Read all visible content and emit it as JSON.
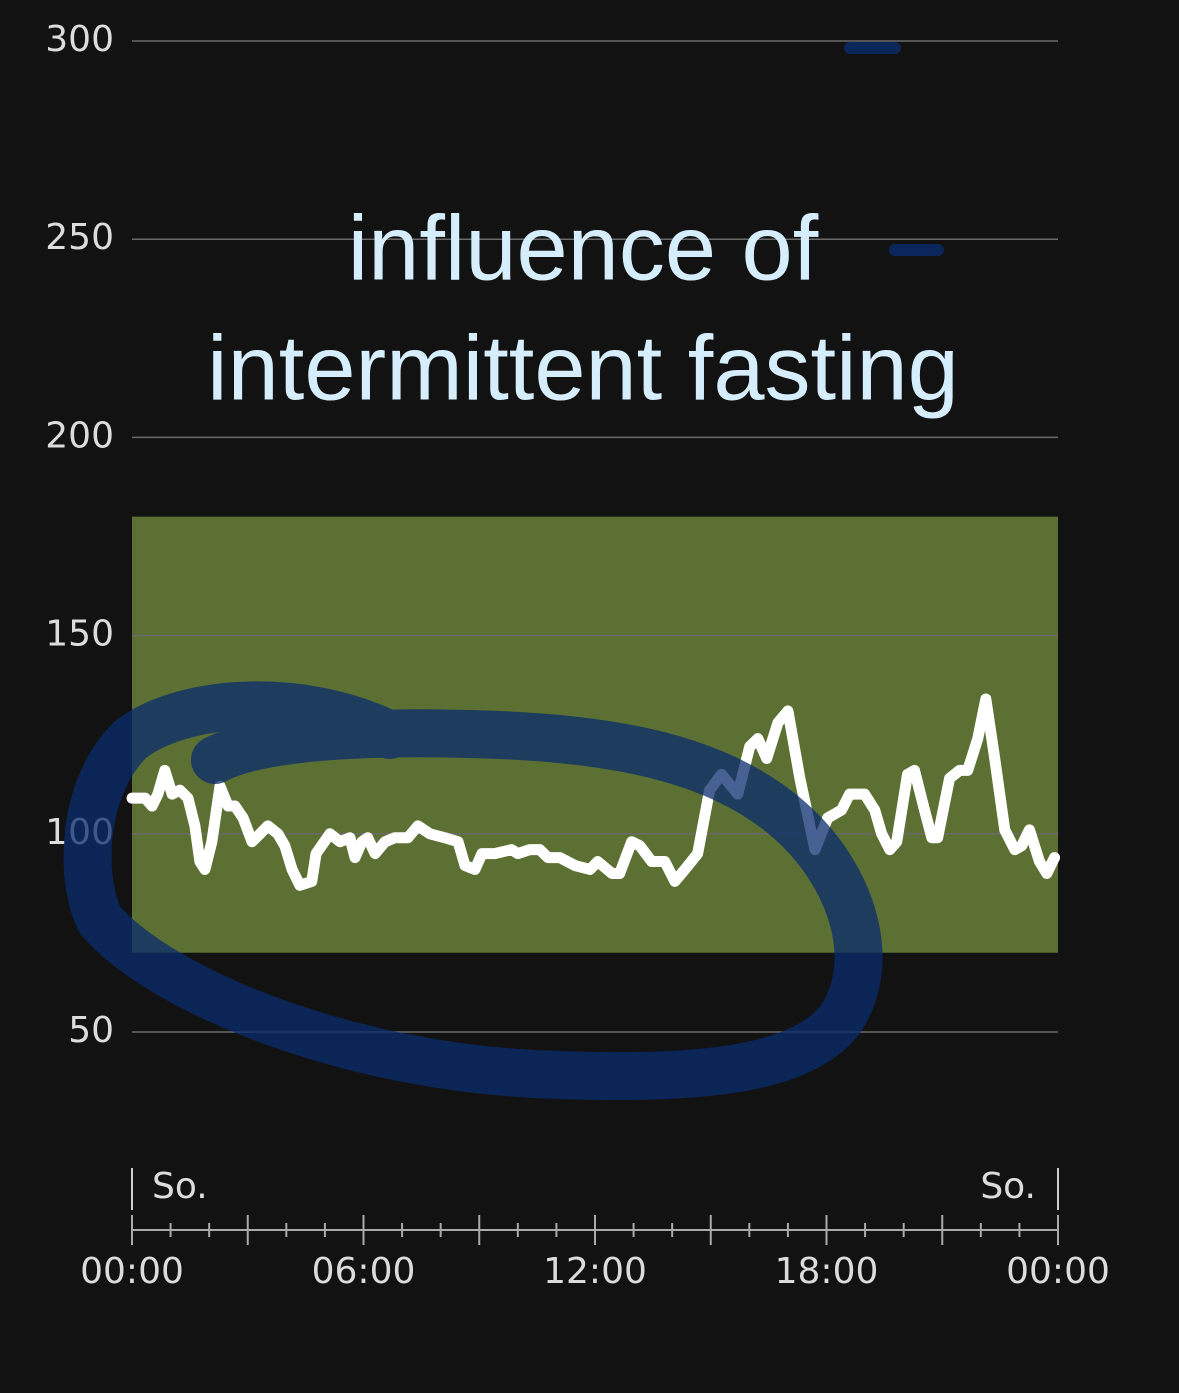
{
  "chart_data": {
    "type": "line",
    "annotation": [
      "influence of",
      "intermittent fasting"
    ],
    "x": [
      0,
      0.34,
      0.52,
      0.67,
      0.85,
      1.04,
      1.24,
      1.45,
      1.63,
      1.76,
      1.89,
      2.07,
      2.28,
      2.49,
      2.67,
      2.88,
      3.11,
      3.32,
      3.52,
      3.78,
      3.96,
      4.15,
      4.35,
      4.66,
      4.77,
      5.13,
      5.39,
      5.65,
      5.78,
      5.96,
      6.11,
      6.3,
      6.56,
      6.81,
      7.15,
      7.41,
      7.72,
      8.11,
      8.45,
      8.63,
      8.89,
      9.07,
      9.4,
      9.84,
      10,
      10.31,
      10.57,
      10.78,
      11.09,
      11.48,
      11.87,
      12.07,
      12.44,
      12.64,
      12.95,
      13.16,
      13.47,
      13.81,
      14.07,
      14.33,
      14.66,
      14.97,
      15.28,
      15.7,
      16.01,
      16.22,
      16.45,
      16.74,
      17,
      17.31,
      17.7,
      18.03,
      18.39,
      18.6,
      18.99,
      19.25,
      19.43,
      19.64,
      19.82,
      20.1,
      20.28,
      20.54,
      20.73,
      20.88,
      21.19,
      21.45,
      21.66,
      21.92,
      22.13,
      22.36,
      22.62,
      22.88,
      23.06,
      23.26,
      23.52,
      23.71,
      23.91
    ],
    "series": [
      {
        "color": "#ffffff",
        "values": [
          109,
          109,
          107,
          110,
          116,
          110,
          111,
          109,
          102,
          93,
          91,
          98,
          112,
          107,
          107,
          104,
          98,
          100,
          102,
          100,
          97,
          91,
          87,
          88,
          95,
          100,
          98,
          99,
          94,
          98,
          99,
          95,
          98,
          99,
          99,
          102,
          100,
          99,
          98,
          92,
          91,
          95,
          95,
          96,
          95,
          96,
          96,
          94,
          94,
          92,
          91,
          93,
          90,
          90,
          98,
          97,
          93,
          93,
          88,
          91,
          95,
          111,
          115,
          110,
          122,
          124,
          119,
          128,
          131,
          114,
          96,
          104,
          106,
          110,
          110,
          106,
          100,
          96,
          98,
          115,
          116,
          106,
          99,
          99,
          114,
          116,
          116,
          124,
          134,
          119,
          101,
          96,
          97,
          101,
          93,
          90,
          94
        ]
      }
    ],
    "target_range": [
      70,
      180
    ],
    "target_color": "#5b7032",
    "ylim": [
      50,
      300
    ],
    "yticks": [
      50,
      100,
      150,
      200,
      250,
      300
    ],
    "grid": true,
    "xlim": [
      0,
      24
    ],
    "xticks": [
      {
        "value": 0,
        "label": "00:00"
      },
      {
        "value": 6,
        "label": "06:00"
      },
      {
        "value": 12,
        "label": "12:00"
      },
      {
        "value": 18,
        "label": "18:00"
      },
      {
        "value": 24,
        "label": "00:00"
      }
    ],
    "xminorticks": [
      1,
      2,
      3,
      4,
      5,
      7,
      8,
      9,
      10,
      11,
      13,
      14,
      15,
      16,
      17,
      19,
      20,
      21,
      22,
      23
    ],
    "day_labels": [
      {
        "x": 0,
        "label": "So."
      },
      {
        "x": 24,
        "label": "So."
      }
    ]
  }
}
